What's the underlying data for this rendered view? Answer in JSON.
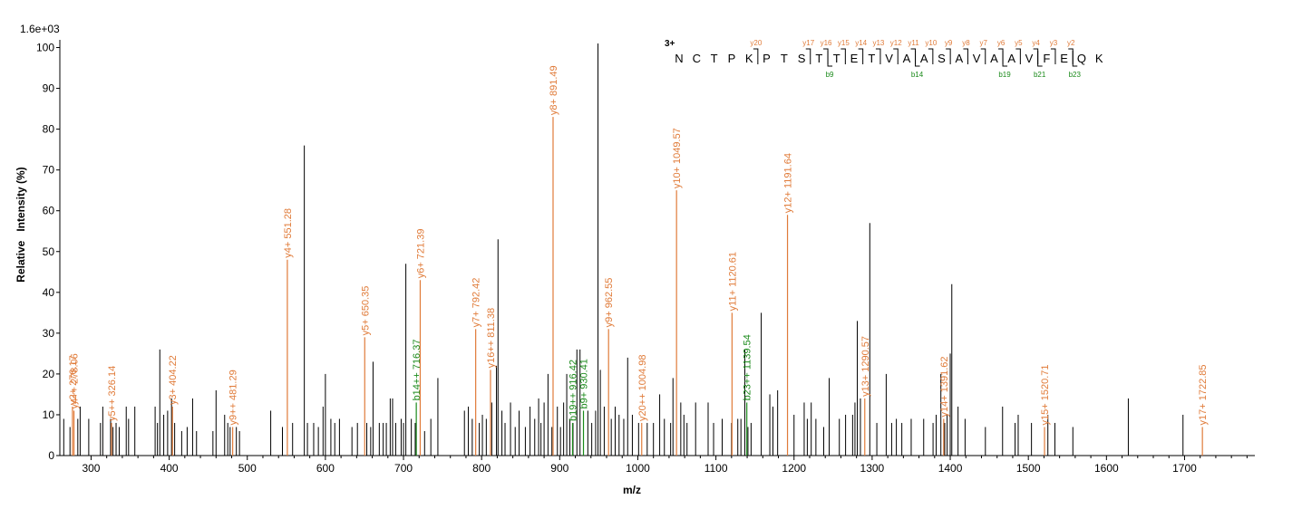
{
  "chart_data": {
    "type": "bar",
    "title": "",
    "intensity_max_label": "1.6e+03",
    "xlabel": "m/z",
    "ylabel": "Relative   Intensity (%)",
    "xlim": [
      260,
      1790
    ],
    "ylim": [
      0,
      101
    ],
    "x_ticks": [
      300,
      400,
      500,
      600,
      700,
      800,
      900,
      1000,
      1100,
      1200,
      1300,
      1400,
      1500,
      1600,
      1700
    ],
    "y_ticks": [
      0,
      10,
      20,
      30,
      40,
      50,
      60,
      70,
      80,
      90,
      100
    ],
    "colors": {
      "unmatched": "#000000",
      "y_ion": "#e07b39",
      "b_ion": "#1a8a1a",
      "charge": "#00008b"
    },
    "background_peaks": [
      [
        265,
        9
      ],
      [
        273,
        7
      ],
      [
        278,
        10
      ],
      [
        283,
        9
      ],
      [
        286,
        12
      ],
      [
        297,
        9
      ],
      [
        312,
        8
      ],
      [
        315,
        12
      ],
      [
        325,
        9
      ],
      [
        328,
        7
      ],
      [
        332,
        8
      ],
      [
        336,
        7
      ],
      [
        345,
        12
      ],
      [
        348,
        9
      ],
      [
        356,
        12
      ],
      [
        382,
        12
      ],
      [
        385,
        8
      ],
      [
        388,
        26
      ],
      [
        393,
        10
      ],
      [
        398,
        11
      ],
      [
        403,
        14
      ],
      [
        407,
        8
      ],
      [
        416,
        6
      ],
      [
        423,
        7
      ],
      [
        430,
        14
      ],
      [
        435,
        6
      ],
      [
        456,
        6
      ],
      [
        460,
        16
      ],
      [
        471,
        10
      ],
      [
        475,
        8
      ],
      [
        478,
        7
      ],
      [
        486,
        7
      ],
      [
        490,
        6
      ],
      [
        530,
        11
      ],
      [
        545,
        7
      ],
      [
        558,
        8
      ],
      [
        573,
        76
      ],
      [
        577,
        8
      ],
      [
        585,
        8
      ],
      [
        591,
        7
      ],
      [
        597,
        12
      ],
      [
        600,
        20
      ],
      [
        607,
        9
      ],
      [
        612,
        8
      ],
      [
        618,
        9
      ],
      [
        634,
        7
      ],
      [
        641,
        8
      ],
      [
        653,
        8
      ],
      [
        658,
        7
      ],
      [
        661,
        23
      ],
      [
        669,
        8
      ],
      [
        674,
        8
      ],
      [
        678,
        8
      ],
      [
        683,
        14
      ],
      [
        686,
        14
      ],
      [
        690,
        8
      ],
      [
        697,
        9
      ],
      [
        700,
        8
      ],
      [
        703,
        47
      ],
      [
        710,
        9
      ],
      [
        715,
        8
      ],
      [
        727,
        6
      ],
      [
        735,
        9
      ],
      [
        744,
        19
      ],
      [
        778,
        11
      ],
      [
        783,
        12
      ],
      [
        788,
        9
      ],
      [
        797,
        8
      ],
      [
        801,
        10
      ],
      [
        806,
        9
      ],
      [
        813,
        13
      ],
      [
        819,
        22
      ],
      [
        821,
        53
      ],
      [
        826,
        11
      ],
      [
        830,
        8
      ],
      [
        837,
        13
      ],
      [
        843,
        7
      ],
      [
        848,
        11
      ],
      [
        856,
        7
      ],
      [
        862,
        12
      ],
      [
        868,
        9
      ],
      [
        873,
        14
      ],
      [
        876,
        8
      ],
      [
        880,
        13
      ],
      [
        885,
        20
      ],
      [
        890,
        7
      ],
      [
        897,
        12
      ],
      [
        901,
        7
      ],
      [
        905,
        13
      ],
      [
        909,
        20
      ],
      [
        913,
        9
      ],
      [
        917,
        8
      ],
      [
        922,
        26
      ],
      [
        926,
        26
      ],
      [
        936,
        11
      ],
      [
        941,
        8
      ],
      [
        946,
        11
      ],
      [
        949,
        101
      ],
      [
        952,
        21
      ],
      [
        957,
        12
      ],
      [
        966,
        9
      ],
      [
        971,
        12
      ],
      [
        976,
        10
      ],
      [
        982,
        9
      ],
      [
        987,
        24
      ],
      [
        993,
        10
      ],
      [
        1001,
        8
      ],
      [
        1012,
        8
      ],
      [
        1020,
        8
      ],
      [
        1028,
        15
      ],
      [
        1034,
        9
      ],
      [
        1042,
        8
      ],
      [
        1045,
        19
      ],
      [
        1055,
        13
      ],
      [
        1059,
        10
      ],
      [
        1063,
        8
      ],
      [
        1074,
        13
      ],
      [
        1090,
        13
      ],
      [
        1097,
        8
      ],
      [
        1108,
        9
      ],
      [
        1120,
        8
      ],
      [
        1128,
        9
      ],
      [
        1132,
        9
      ],
      [
        1137,
        26
      ],
      [
        1141,
        7
      ],
      [
        1145,
        8
      ],
      [
        1158,
        35
      ],
      [
        1169,
        15
      ],
      [
        1173,
        12
      ],
      [
        1179,
        16
      ],
      [
        1200,
        10
      ],
      [
        1213,
        13
      ],
      [
        1217,
        9
      ],
      [
        1222,
        13
      ],
      [
        1228,
        9
      ],
      [
        1238,
        7
      ],
      [
        1245,
        19
      ],
      [
        1258,
        9
      ],
      [
        1266,
        10
      ],
      [
        1275,
        10
      ],
      [
        1278,
        13
      ],
      [
        1281,
        33
      ],
      [
        1285,
        14
      ],
      [
        1297,
        57
      ],
      [
        1306,
        8
      ],
      [
        1318,
        20
      ],
      [
        1325,
        8
      ],
      [
        1331,
        9
      ],
      [
        1338,
        8
      ],
      [
        1350,
        9
      ],
      [
        1366,
        9
      ],
      [
        1378,
        8
      ],
      [
        1382,
        10
      ],
      [
        1388,
        20
      ],
      [
        1393,
        8
      ],
      [
        1396,
        10
      ],
      [
        1400,
        25
      ],
      [
        1402,
        42
      ],
      [
        1410,
        12
      ],
      [
        1419,
        9
      ],
      [
        1445,
        7
      ],
      [
        1467,
        12
      ],
      [
        1483,
        8
      ],
      [
        1487,
        10
      ],
      [
        1504,
        8
      ],
      [
        1525,
        10
      ],
      [
        1534,
        8
      ],
      [
        1557,
        7
      ],
      [
        1628,
        14
      ],
      [
        1698,
        10
      ]
    ],
    "annotated_peaks": [
      {
        "mz": 276.17,
        "intensity": 12,
        "label": "y2+ 276.17",
        "ion": "y"
      },
      {
        "mz": 278.06,
        "intensity": 11,
        "label": "y4++ 278.06",
        "ion": "y"
      },
      {
        "mz": 326.14,
        "intensity": 8,
        "label": "y5++ 326.14",
        "ion": "y"
      },
      {
        "mz": 404.22,
        "intensity": 12,
        "label": "y3+ 404.22",
        "ion": "y"
      },
      {
        "mz": 481.29,
        "intensity": 7,
        "label": "y9++ 481.29",
        "ion": "y"
      },
      {
        "mz": 551.28,
        "intensity": 48,
        "label": "y4+ 551.28",
        "ion": "y"
      },
      {
        "mz": 650.35,
        "intensity": 29,
        "label": "y5+ 650.35",
        "ion": "y"
      },
      {
        "mz": 716.37,
        "intensity": 13,
        "label": "b14++ 716.37",
        "ion": "b"
      },
      {
        "mz": 721.39,
        "intensity": 43,
        "label": "y6+ 721.39",
        "ion": "y"
      },
      {
        "mz": 792.42,
        "intensity": 31,
        "label": "y7+ 792.42",
        "ion": "y"
      },
      {
        "mz": 811.38,
        "intensity": 21,
        "label": "y16++ 811.38",
        "ion": "y"
      },
      {
        "mz": 891.49,
        "intensity": 83,
        "label": "y8+ 891.49",
        "ion": "y"
      },
      {
        "mz": 916.42,
        "intensity": 8,
        "label": "b19++ 916.42",
        "ion": "b"
      },
      {
        "mz": 930.41,
        "intensity": 11,
        "label": "b9+ 930.41",
        "ion": "b"
      },
      {
        "mz": 962.55,
        "intensity": 31,
        "label": "y9+ 962.55",
        "ion": "y"
      },
      {
        "mz": 1004.98,
        "intensity": 8,
        "label": "y20++ 1004.98",
        "ion": "y"
      },
      {
        "mz": 1049.57,
        "intensity": 65,
        "label": "y10+ 1049.57",
        "ion": "y"
      },
      {
        "mz": 1120.61,
        "intensity": 35,
        "label": "y11+ 1120.61",
        "ion": "y"
      },
      {
        "mz": 1139.54,
        "intensity": 13,
        "label": "b23++ 1139.54",
        "ion": "b"
      },
      {
        "mz": 1191.64,
        "intensity": 59,
        "label": "y12+ 1191.64",
        "ion": "y"
      },
      {
        "mz": 1290.57,
        "intensity": 14,
        "label": "y13+ 1290.57",
        "ion": "y"
      },
      {
        "mz": 1391.62,
        "intensity": 9,
        "label": "y14+ 1391.62",
        "ion": "y"
      },
      {
        "mz": 1520.71,
        "intensity": 7,
        "label": "y15+ 1520.71",
        "ion": "y"
      },
      {
        "mz": 1722.85,
        "intensity": 7,
        "label": "y17+ 1722.85",
        "ion": "y"
      }
    ],
    "peptide": {
      "charge": "3+",
      "sequence": [
        "N",
        "C",
        "T",
        "P",
        "K",
        "P",
        "T",
        "S",
        "T",
        "T",
        "E",
        "T",
        "V",
        "A",
        "A",
        "S",
        "A",
        "V",
        "A",
        "A",
        "V",
        "F",
        "E",
        "Q",
        "K"
      ],
      "y_ions": [
        {
          "label": "y20",
          "after": 5
        },
        {
          "label": "y17",
          "after": 8
        },
        {
          "label": "y16",
          "after": 9
        },
        {
          "label": "y15",
          "after": 10
        },
        {
          "label": "y14",
          "after": 11
        },
        {
          "label": "y13",
          "after": 12
        },
        {
          "label": "y12",
          "after": 13
        },
        {
          "label": "y11",
          "after": 14
        },
        {
          "label": "y10",
          "after": 15
        },
        {
          "label": "y9",
          "after": 16
        },
        {
          "label": "y8",
          "after": 17
        },
        {
          "label": "y7",
          "after": 18
        },
        {
          "label": "y6",
          "after": 19
        },
        {
          "label": "y5",
          "after": 20
        },
        {
          "label": "y4",
          "after": 21
        },
        {
          "label": "y3",
          "after": 22
        },
        {
          "label": "y2",
          "after": 23
        }
      ],
      "b_ions": [
        {
          "label": "b9",
          "after": 9
        },
        {
          "label": "b14",
          "after": 14
        },
        {
          "label": "b19",
          "after": 19
        },
        {
          "label": "b21",
          "after": 21
        },
        {
          "label": "b23",
          "after": 23
        }
      ]
    }
  }
}
